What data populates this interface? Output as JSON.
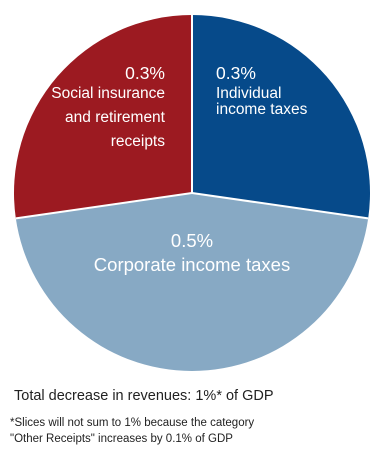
{
  "chart_data": {
    "type": "pie",
    "slices": [
      {
        "value_label": "0.3%",
        "label_lines": [
          "Individual",
          "income taxes"
        ],
        "value": 0.3,
        "color": "#064a8a"
      },
      {
        "value_label": "0.5%",
        "label_lines": [
          "Corporate income taxes"
        ],
        "value": 0.5,
        "color": "#87a9c4"
      },
      {
        "value_label": "0.3%",
        "label_lines": [
          "Social insurance",
          "and retirement",
          "receipts"
        ],
        "value": 0.3,
        "color": "#9c1a21"
      }
    ]
  },
  "summary": {
    "total_text": "Total decrease in revenues: 1%* of GDP"
  },
  "footnote": {
    "line1": "*Slices will not sum to 1% because the category",
    "line2": "\"Other Receipts\" increases by 0.1% of GDP"
  }
}
